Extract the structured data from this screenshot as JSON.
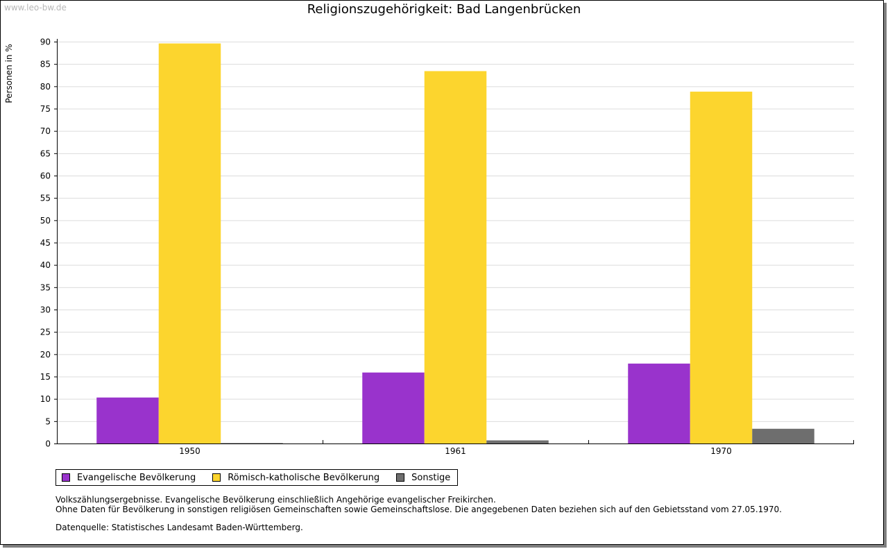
{
  "watermark": "www.leo-bw.de",
  "chart_data": {
    "type": "bar",
    "title": "Religionszugehörigkeit: Bad Langenbrücken",
    "xlabel": "",
    "ylabel": "Personen in %",
    "ylim": [
      0,
      90
    ],
    "ytick_step": 5,
    "grid": true,
    "legend_position": "bottom-left",
    "categories": [
      "1950",
      "1961",
      "1970"
    ],
    "series": [
      {
        "name": "Evangelische Bevölkerung",
        "color": "#9933cc",
        "values": [
          10.3,
          15.9,
          17.9
        ]
      },
      {
        "name": "Römisch-katholische Bevölkerung",
        "color": "#fcd52e",
        "values": [
          89.6,
          83.4,
          78.8
        ]
      },
      {
        "name": "Sonstige",
        "color": "#6e6e6e",
        "values": [
          0.1,
          0.7,
          3.3
        ]
      }
    ]
  },
  "notes": [
    "Volkszählungsergebnisse. Evangelische Bevölkerung einschließlich Angehörige evangelischer Freikirchen.",
    "Ohne Daten für Bevölkerung in sonstigen religiösen Gemeinschaften sowie Gemeinschaftslose. Die angegebenen Daten beziehen sich auf den Gebietsstand vom 27.05.1970."
  ],
  "source": "Datenquelle: Statistisches Landesamt Baden-Württemberg."
}
